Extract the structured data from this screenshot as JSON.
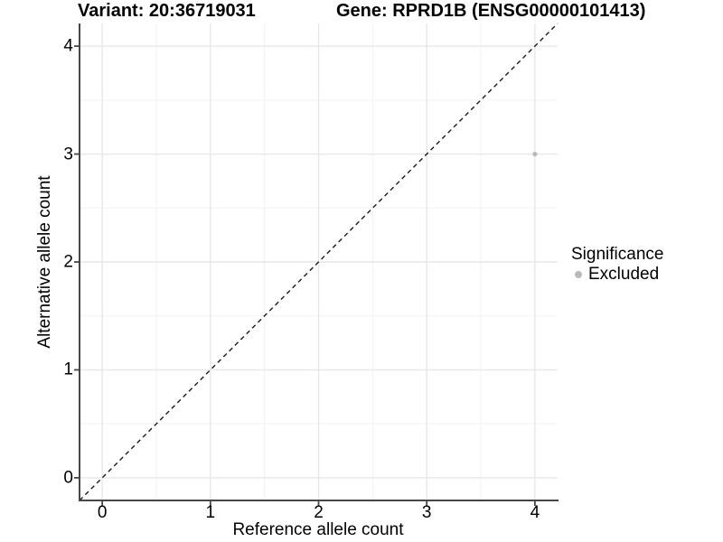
{
  "chart_data": {
    "type": "scatter",
    "title_left": "Variant: 20:36719031",
    "title_right": "Gene: RPRD1B (ENSG00000101413)",
    "xlabel": "Reference allele count",
    "ylabel": "Alternative allele count",
    "x_ticks": [
      0,
      1,
      2,
      3,
      4
    ],
    "y_ticks": [
      0,
      1,
      2,
      3,
      4
    ],
    "x_minor_ticks": [
      0.5,
      1.5,
      2.5,
      3.5
    ],
    "y_minor_ticks": [
      0.5,
      1.5,
      2.5,
      3.5
    ],
    "xlim": [
      -0.21,
      4.21
    ],
    "ylim": [
      -0.21,
      4.21
    ],
    "grid": true,
    "legend_position": "right",
    "points": [
      {
        "x": 4,
        "y": 3,
        "significance": "Excluded"
      }
    ],
    "identity_line": {
      "style": "dashed",
      "slope": 1,
      "intercept": 0
    },
    "legend": {
      "title": "Significance",
      "items": [
        {
          "label": "Excluded",
          "color": "#b9b9b9"
        }
      ]
    },
    "colors": {
      "point": "#b9b9b9",
      "axis_line": "#474747",
      "grid_major": "#e7e7e7",
      "grid_minor": "#f2f2f2",
      "identity_line": "#1a1a1a",
      "text": "#000000"
    }
  }
}
